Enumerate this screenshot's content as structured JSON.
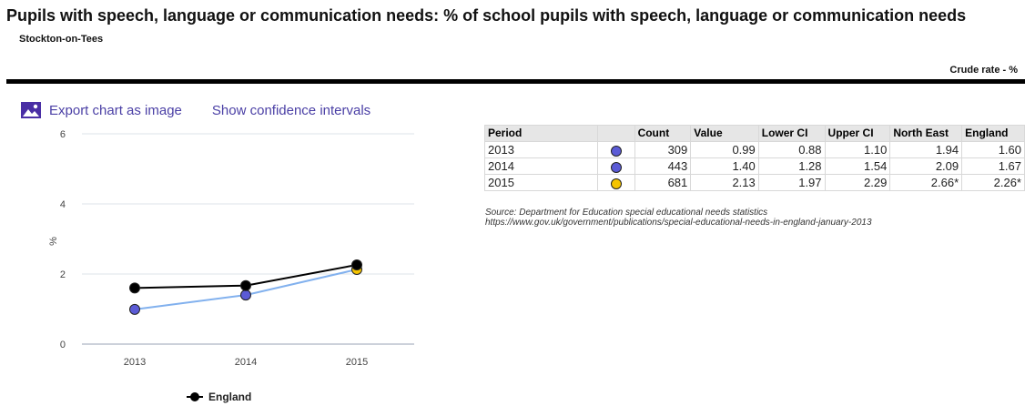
{
  "header": {
    "title": "Pupils with speech, language or communication needs: % of school pupils with speech, language or communication needs",
    "area": "Stockton-on-Tees",
    "measure": "Crude rate - %"
  },
  "toolbar": {
    "export_label": "Export chart as image",
    "ci_label": "Show confidence intervals"
  },
  "chart_data": {
    "type": "line",
    "categories": [
      "2013",
      "2014",
      "2015"
    ],
    "series": [
      {
        "name": "",
        "values": [
          0.99,
          1.4,
          2.13
        ],
        "color": "#82b1ee",
        "marker_colors": [
          "#5b5bd6",
          "#5b5bd6",
          "#f5c400"
        ]
      },
      {
        "name": "England",
        "values": [
          1.6,
          1.67,
          2.26
        ],
        "color": "#000000",
        "marker_colors": [
          "#000000",
          "#000000",
          "#000000"
        ]
      }
    ],
    "yticks": [
      "0",
      "2",
      "4",
      "6"
    ],
    "ylabel": "%",
    "ylim": [
      0,
      6
    ],
    "grid": true,
    "legend": "bottom"
  },
  "table": {
    "headers": [
      "Period",
      "",
      "Count",
      "Value",
      "Lower CI",
      "Upper CI",
      "North East",
      "England"
    ],
    "rows": [
      {
        "period": "2013",
        "dot_color": "#5b5bd6",
        "count": "309",
        "value": "0.99",
        "lower": "0.88",
        "upper": "1.10",
        "ne": "1.94",
        "eng": "1.60"
      },
      {
        "period": "2014",
        "dot_color": "#5b5bd6",
        "count": "443",
        "value": "1.40",
        "lower": "1.28",
        "upper": "1.54",
        "ne": "2.09",
        "eng": "1.67"
      },
      {
        "period": "2015",
        "dot_color": "#f5c400",
        "count": "681",
        "value": "2.13",
        "lower": "1.97",
        "upper": "2.29",
        "ne": "2.66*",
        "eng": "2.26*"
      }
    ]
  },
  "source": {
    "line1": "Source: Department for Education special educational needs statistics",
    "line2": "https://www.gov.uk/government/publications/special-educational-needs-in-england-january-2013"
  }
}
